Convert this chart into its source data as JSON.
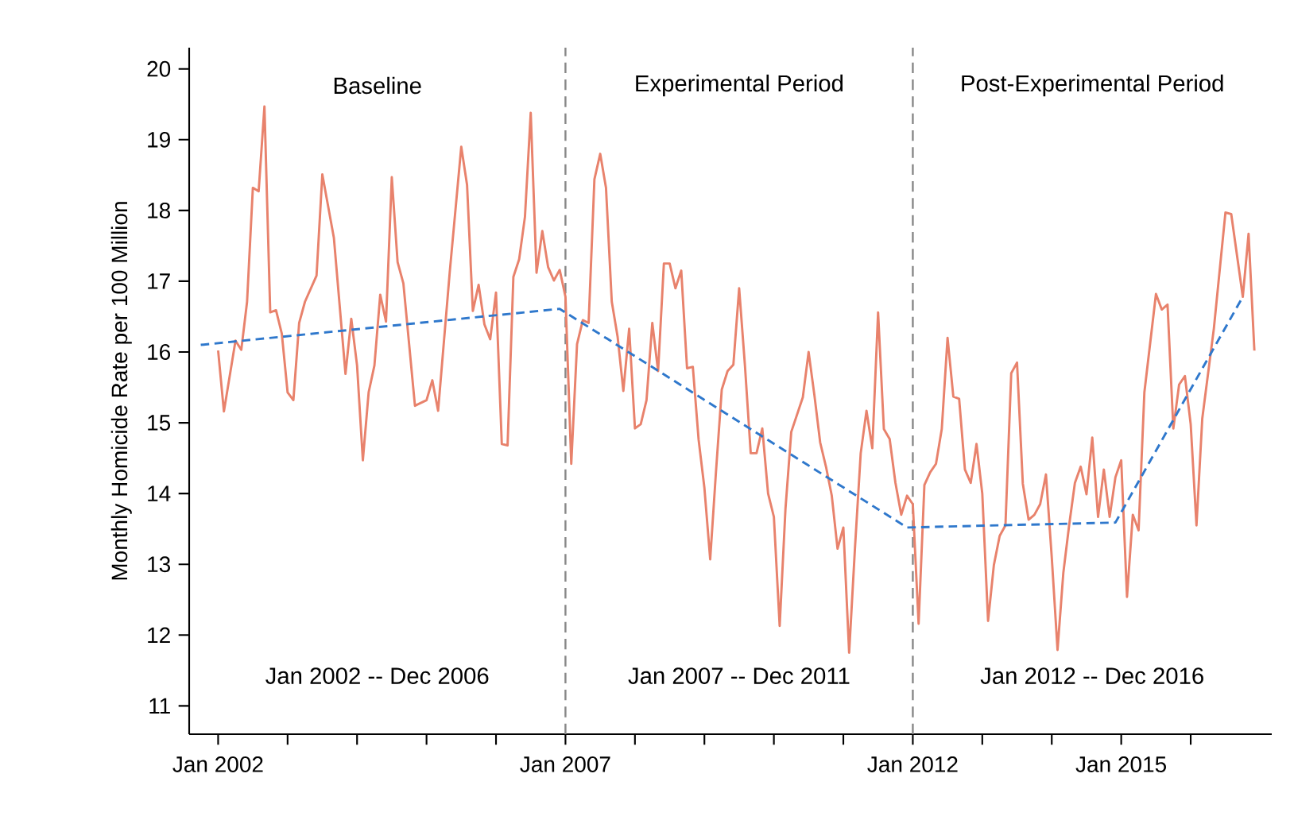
{
  "chart_data": {
    "type": "line",
    "ylabel": "Monthly Homicide Rate per 100 Million",
    "xlim": [
      "2001-08",
      "2017-03"
    ],
    "ylim": [
      10.6,
      20.3
    ],
    "xticks": [
      {
        "value": "2002-01",
        "label": "Jan 2002"
      },
      {
        "value": "2003-01",
        "label": null
      },
      {
        "value": "2004-01",
        "label": null
      },
      {
        "value": "2005-01",
        "label": null
      },
      {
        "value": "2006-01",
        "label": null
      },
      {
        "value": "2007-01",
        "label": "Jan 2007"
      },
      {
        "value": "2008-01",
        "label": null
      },
      {
        "value": "2009-01",
        "label": null
      },
      {
        "value": "2010-01",
        "label": null
      },
      {
        "value": "2011-01",
        "label": null
      },
      {
        "value": "2012-01",
        "label": "Jan 2012"
      },
      {
        "value": "2013-01",
        "label": null
      },
      {
        "value": "2014-01",
        "label": null
      },
      {
        "value": "2015-01",
        "label": "Jan 2015"
      },
      {
        "value": "2016-01",
        "label": null
      }
    ],
    "yticks": [
      11,
      12,
      13,
      14,
      15,
      16,
      17,
      18,
      19,
      20
    ],
    "series": [
      {
        "color": "#e8826c",
        "line_style": "solid",
        "x": [
          "2002-01",
          "2002-02",
          "2002-04",
          "2002-05",
          "2002-06",
          "2002-07",
          "2002-08",
          "2002-09",
          "2002-10",
          "2002-11",
          "2002-12",
          "2003-01",
          "2003-02",
          "2003-03",
          "2003-04",
          "2003-06",
          "2003-07",
          "2003-09",
          "2003-11",
          "2003-12",
          "2004-01",
          "2004-02",
          "2004-03",
          "2004-04",
          "2004-05",
          "2004-06",
          "2004-07",
          "2004-08",
          "2004-09",
          "2004-11",
          "2005-01",
          "2005-02",
          "2005-03",
          "2005-05",
          "2005-07",
          "2005-08",
          "2005-09",
          "2005-10",
          "2005-11",
          "2005-12",
          "2006-01",
          "2006-02",
          "2006-03",
          "2006-04",
          "2006-05",
          "2006-06",
          "2006-07",
          "2006-08",
          "2006-09",
          "2006-10",
          "2006-11",
          "2006-12",
          "2007-01",
          "2007-02",
          "2007-03",
          "2007-04",
          "2007-05",
          "2007-06",
          "2007-07",
          "2007-08",
          "2007-09",
          "2007-10",
          "2007-11",
          "2007-12",
          "2008-01",
          "2008-02",
          "2008-03",
          "2008-04",
          "2008-05",
          "2008-06",
          "2008-07",
          "2008-08",
          "2008-09",
          "2008-10",
          "2008-11",
          "2008-12",
          "2009-01",
          "2009-02",
          "2009-03",
          "2009-04",
          "2009-05",
          "2009-06",
          "2009-07",
          "2009-08",
          "2009-09",
          "2009-10",
          "2009-11",
          "2009-12",
          "2010-01",
          "2010-02",
          "2010-03",
          "2010-04",
          "2010-06",
          "2010-07",
          "2010-08",
          "2010-09",
          "2010-10",
          "2010-11",
          "2010-12",
          "2011-01",
          "2011-02",
          "2011-03",
          "2011-04",
          "2011-05",
          "2011-06",
          "2011-07",
          "2011-08",
          "2011-09",
          "2011-10",
          "2011-11",
          "2011-12",
          "2012-01",
          "2012-02",
          "2012-03",
          "2012-04",
          "2012-05",
          "2012-06",
          "2012-07",
          "2012-08",
          "2012-09",
          "2012-10",
          "2012-11",
          "2012-12",
          "2013-01",
          "2013-02",
          "2013-03",
          "2013-04",
          "2013-05",
          "2013-06",
          "2013-07",
          "2013-08",
          "2013-09",
          "2013-10",
          "2013-11",
          "2013-12",
          "2014-01",
          "2014-02",
          "2014-03",
          "2014-04",
          "2014-05",
          "2014-06",
          "2014-07",
          "2014-08",
          "2014-09",
          "2014-10",
          "2014-11",
          "2014-12",
          "2015-01",
          "2015-02",
          "2015-03",
          "2015-04",
          "2015-05",
          "2015-07",
          "2015-08",
          "2015-09",
          "2015-10",
          "2015-11",
          "2015-12",
          "2016-01",
          "2016-02",
          "2016-03",
          "2016-05",
          "2016-07",
          "2016-08",
          "2016-10",
          "2016-11",
          "2016-12"
        ],
        "values": [
          16.02,
          15.16,
          16.16,
          16.03,
          16.71,
          18.32,
          18.27,
          19.47,
          16.56,
          16.59,
          16.26,
          15.43,
          15.32,
          16.41,
          16.71,
          17.08,
          18.51,
          17.61,
          15.69,
          16.47,
          15.81,
          14.47,
          15.43,
          15.81,
          16.81,
          16.43,
          18.47,
          17.27,
          16.97,
          15.24,
          15.32,
          15.6,
          15.17,
          17.12,
          18.9,
          18.36,
          16.58,
          16.95,
          16.39,
          16.18,
          16.84,
          14.7,
          14.68,
          17.06,
          17.31,
          17.91,
          19.38,
          17.12,
          17.71,
          17.2,
          17.01,
          17.16,
          16.78,
          14.42,
          16.11,
          16.45,
          16.41,
          18.44,
          18.8,
          18.32,
          16.71,
          16.22,
          15.45,
          16.33,
          14.92,
          14.98,
          15.32,
          16.41,
          15.73,
          17.25,
          17.25,
          16.9,
          17.15,
          15.77,
          15.79,
          14.76,
          14.08,
          13.07,
          14.31,
          15.47,
          15.73,
          15.82,
          16.9,
          15.81,
          14.57,
          14.57,
          14.92,
          14.0,
          13.67,
          12.13,
          13.78,
          14.87,
          15.36,
          16.0,
          15.39,
          14.72,
          14.38,
          13.97,
          13.22,
          13.52,
          11.75,
          13.22,
          14.57,
          15.17,
          14.64,
          16.56,
          14.91,
          14.77,
          14.15,
          13.7,
          13.97,
          13.85,
          12.16,
          14.12,
          14.3,
          14.42,
          14.91,
          16.2,
          15.37,
          15.34,
          14.34,
          14.15,
          14.7,
          14.0,
          12.2,
          12.99,
          13.4,
          13.55,
          15.7,
          15.85,
          14.14,
          13.63,
          13.7,
          13.85,
          14.27,
          13.1,
          11.79,
          12.88,
          13.55,
          14.15,
          14.38,
          13.99,
          14.79,
          13.67,
          14.34,
          13.67,
          14.23,
          14.47,
          12.54,
          13.7,
          13.48,
          15.43,
          16.82,
          16.6,
          16.67,
          14.92,
          15.54,
          15.66,
          14.98,
          13.55,
          15.06,
          16.33,
          17.97,
          17.95,
          16.78,
          17.67,
          16.02
        ]
      },
      {
        "type": "line",
        "color": "#2f78cc",
        "line_style": "dashed",
        "x": [
          "2001-10",
          "2006-12",
          "2011-12",
          "2014-12",
          "2016-10"
        ],
        "values": [
          16.1,
          16.61,
          13.52,
          13.59,
          16.78
        ]
      }
    ],
    "ref_lines": [
      {
        "axis": "x",
        "value": "2007-01",
        "color": "#888888",
        "line_style": "dashed"
      },
      {
        "axis": "x",
        "value": "2012-01",
        "color": "#888888",
        "line_style": "dashed"
      }
    ],
    "annotations": [
      "Baseline",
      "Jan 2002 -- Dec 2006",
      "Experimental Period",
      "Jan 2007 -- Dec 2011",
      "Post-Experimental Period",
      "Jan 2012 -- Dec 2016"
    ]
  }
}
